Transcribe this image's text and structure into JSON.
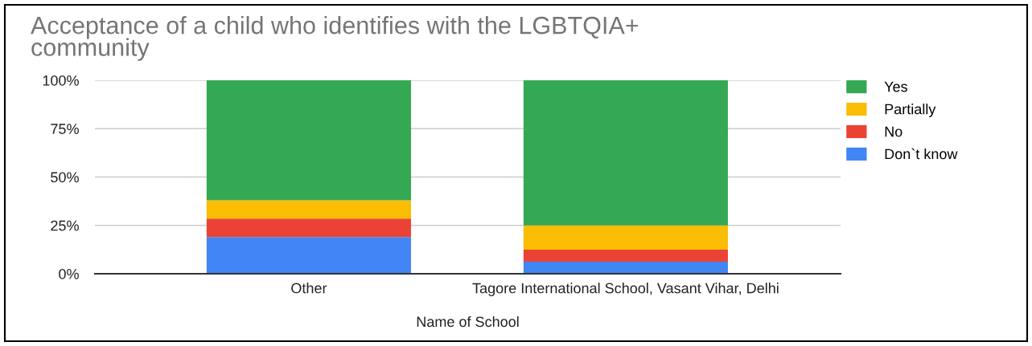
{
  "chart_data": {
    "type": "bar",
    "title": "Acceptance of a child who identifies with the LGBTQIA+\ncommunity",
    "xlabel": "Name of School",
    "categories": [
      "Other",
      "Tagore International School, Vasant Vihar, Delhi"
    ],
    "stacked": true,
    "series": [
      {
        "name": "Don`t know",
        "color": "#4285f4",
        "values": [
          19,
          6.2
        ]
      },
      {
        "name": "No",
        "color": "#ea4335",
        "values": [
          9.5,
          6.3
        ]
      },
      {
        "name": "Partially",
        "color": "#fbbc04",
        "values": [
          9.5,
          12.5
        ]
      },
      {
        "name": "Yes",
        "color": "#34a853",
        "values": [
          62,
          75
        ]
      }
    ],
    "ylim": [
      0,
      100
    ],
    "yticks": [
      {
        "value": 0,
        "label": "0%"
      },
      {
        "value": 25,
        "label": "25%"
      },
      {
        "value": 50,
        "label": "50%"
      },
      {
        "value": 75,
        "label": "75%"
      },
      {
        "value": 100,
        "label": "100%"
      }
    ],
    "grid": "y",
    "legend": "right"
  }
}
